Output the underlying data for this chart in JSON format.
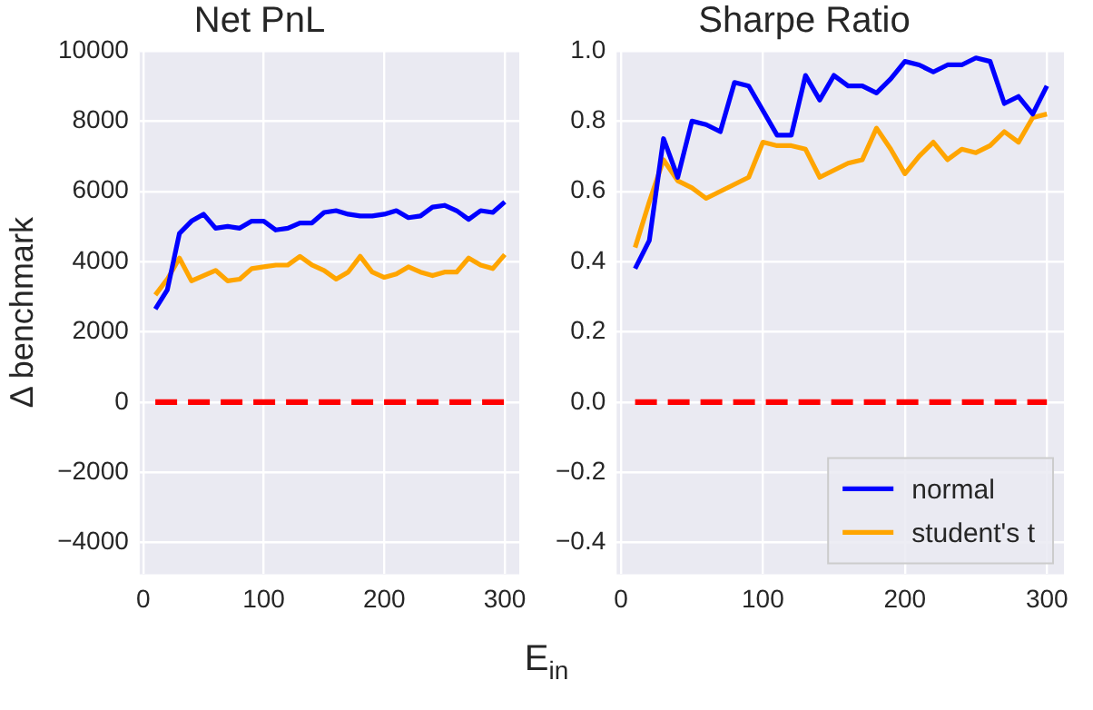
{
  "chart_data": [
    {
      "type": "line",
      "title": "Net PnL",
      "xlabel": "E$_{in}$",
      "ylabel": "Δ benchmark",
      "x": [
        10,
        20,
        30,
        40,
        50,
        60,
        70,
        80,
        90,
        100,
        110,
        120,
        130,
        140,
        150,
        160,
        170,
        180,
        190,
        200,
        210,
        220,
        230,
        240,
        250,
        260,
        270,
        280,
        290,
        300
      ],
      "series": [
        {
          "color": "#0000ff",
          "values": [
            2650,
            3200,
            4800,
            5150,
            5350,
            4950,
            5000,
            4950,
            5150,
            5150,
            4900,
            4950,
            5100,
            5100,
            5400,
            5450,
            5350,
            5300,
            5300,
            5350,
            5450,
            5250,
            5300,
            5550,
            5600,
            5450,
            5200,
            5450,
            5400,
            5700
          ]
        },
        {
          "color": "#ffa500",
          "values": [
            3050,
            3500,
            4100,
            3450,
            3600,
            3750,
            3450,
            3500,
            3800,
            3850,
            3900,
            3900,
            4150,
            3900,
            3750,
            3500,
            3700,
            4150,
            3700,
            3550,
            3650,
            3850,
            3700,
            3600,
            3700,
            3700,
            4100,
            3900,
            3800,
            4200
          ]
        }
      ],
      "ref_lines": [
        {
          "axis": "y",
          "value": 0,
          "color": "#ff0000",
          "line_style": "dashed"
        }
      ],
      "xlim": [
        -3,
        312
      ],
      "xticks": [
        0,
        100,
        200,
        300
      ],
      "ylim": [
        -4900,
        10000
      ],
      "yticks": [
        {
          "value": -4000,
          "label": "−4000"
        },
        {
          "value": -2000,
          "label": "−2000"
        },
        0,
        2000,
        4000,
        6000,
        8000,
        10000
      ],
      "grid": true,
      "legend": false
    },
    {
      "type": "line",
      "title": "Sharpe Ratio",
      "x": [
        10,
        20,
        30,
        40,
        50,
        60,
        70,
        80,
        90,
        100,
        110,
        120,
        130,
        140,
        150,
        160,
        170,
        180,
        190,
        200,
        210,
        220,
        230,
        240,
        250,
        260,
        270,
        280,
        290,
        300
      ],
      "series": [
        {
          "name": "normal",
          "color": "#0000ff",
          "values": [
            0.38,
            0.46,
            0.75,
            0.64,
            0.8,
            0.79,
            0.77,
            0.91,
            0.9,
            0.83,
            0.76,
            0.76,
            0.93,
            0.86,
            0.93,
            0.9,
            0.9,
            0.88,
            0.92,
            0.97,
            0.96,
            0.94,
            0.96,
            0.96,
            0.98,
            0.97,
            0.85,
            0.87,
            0.82,
            0.9
          ]
        },
        {
          "name": "student's t",
          "color": "#ffa500",
          "values": [
            0.44,
            0.57,
            0.69,
            0.63,
            0.61,
            0.58,
            0.6,
            0.62,
            0.64,
            0.74,
            0.73,
            0.73,
            0.72,
            0.64,
            0.66,
            0.68,
            0.69,
            0.78,
            0.72,
            0.65,
            0.7,
            0.74,
            0.69,
            0.72,
            0.71,
            0.73,
            0.77,
            0.74,
            0.81,
            0.82
          ]
        }
      ],
      "ref_lines": [
        {
          "axis": "y",
          "value": 0,
          "color": "#ff0000",
          "line_style": "dashed"
        }
      ],
      "xlim": [
        -3,
        312
      ],
      "xticks": [
        0,
        100,
        200,
        300
      ],
      "ylim": [
        -0.49,
        1.0
      ],
      "yticks": [
        {
          "value": -0.4,
          "label": "−0.4"
        },
        {
          "value": -0.2,
          "label": "−0.2"
        },
        {
          "value": 0,
          "label": "0.0"
        },
        0.2,
        0.4,
        0.6,
        0.8,
        {
          "value": 1,
          "label": "1.0"
        }
      ],
      "grid": true,
      "legend": "bottom right"
    }
  ]
}
